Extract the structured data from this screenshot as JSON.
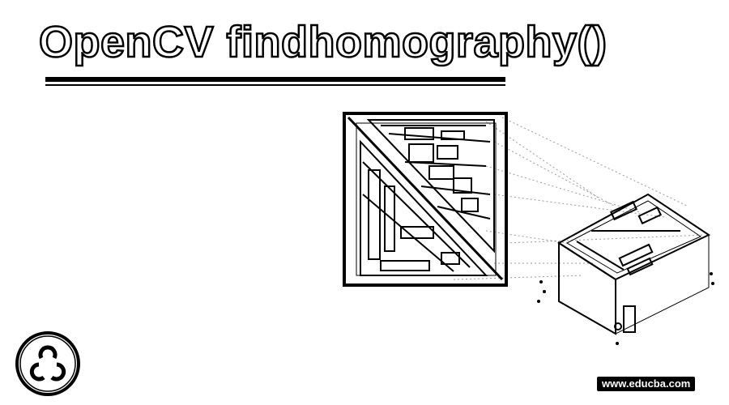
{
  "title": "OpenCV findhomography()",
  "website": "www.educba.com",
  "colors": {
    "foreground": "#000000",
    "background": "#ffffff"
  },
  "illustration": {
    "icon": "homography-matching-illustration"
  },
  "logo": {
    "icon": "opencv-logo-icon"
  }
}
